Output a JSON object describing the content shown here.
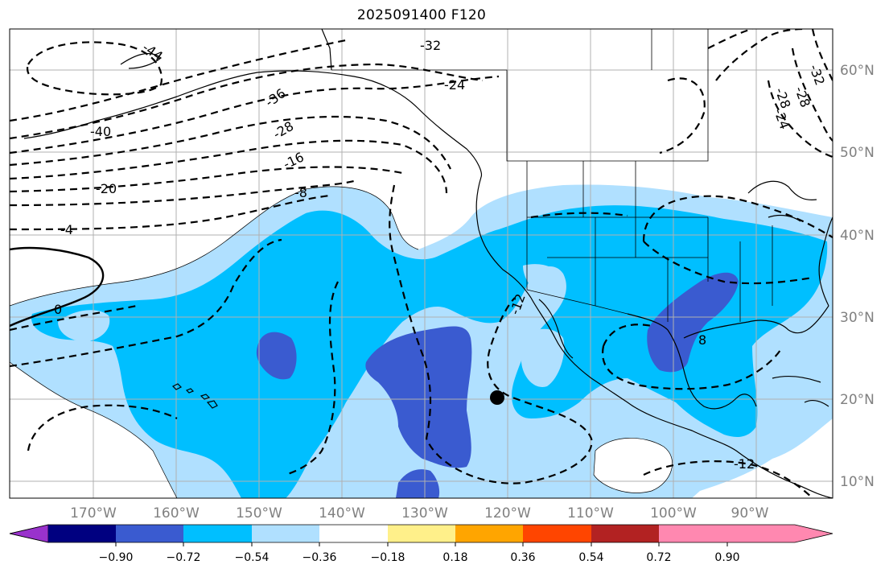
{
  "title": "2025091400 F120",
  "map": {
    "lon_labels": [
      "170°W",
      "160°W",
      "150°W",
      "140°W",
      "130°W",
      "120°W",
      "110°W",
      "100°W",
      "90°W"
    ],
    "lat_labels": [
      "60°N",
      "50°N",
      "40°N",
      "30°N",
      "20°N",
      "10°N"
    ],
    "contour_labels": [
      "-44",
      "-32",
      "-24",
      "-36",
      "-28",
      "-40",
      "-16",
      "-28",
      "-20",
      "-8",
      "-4",
      "0",
      "-32",
      "-24",
      "-28",
      "-12",
      "8",
      "-12"
    ],
    "marker": "storm-center-dot"
  },
  "colorbar": {
    "colors": [
      "#9932cc",
      "#000080",
      "#3a5bd0",
      "#00bfff",
      "#b0e0ff",
      "#ffffff",
      "#fff08a",
      "#ffa500",
      "#ff4500",
      "#b22222",
      "#ff88b0"
    ],
    "tick_labels": [
      "−0.90",
      "−0.72",
      "−0.54",
      "−0.36",
      "−0.18",
      "0.18",
      "0.36",
      "0.54",
      "0.72",
      "0.90"
    ]
  }
}
